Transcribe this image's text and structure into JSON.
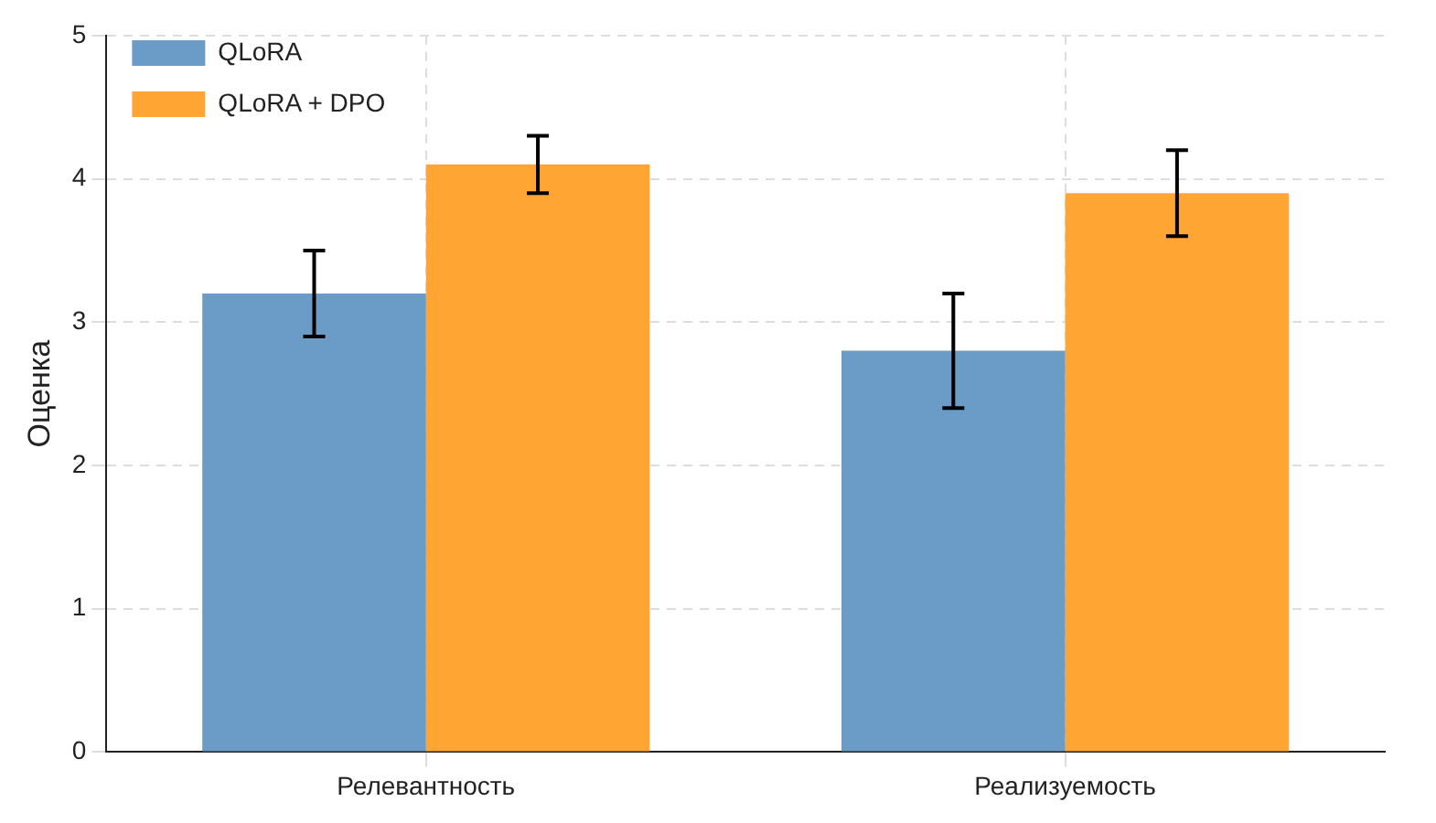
{
  "chart_data": {
    "type": "bar",
    "ylabel": "Оценка",
    "categories": [
      "Релевантность",
      "Реализуемость"
    ],
    "series": [
      {
        "name": "QLoRA",
        "color": "#6b9bc7",
        "values": [
          3.2,
          2.8
        ],
        "errors": [
          0.3,
          0.4
        ]
      },
      {
        "name": "QLoRA + DPO",
        "color": "#ffa533",
        "values": [
          4.1,
          3.9
        ],
        "errors": [
          0.2,
          0.3
        ]
      }
    ],
    "ylim": [
      0,
      5
    ],
    "yticks": [
      0,
      1,
      2,
      3,
      4,
      5
    ],
    "grid": true,
    "legend": "top left"
  }
}
